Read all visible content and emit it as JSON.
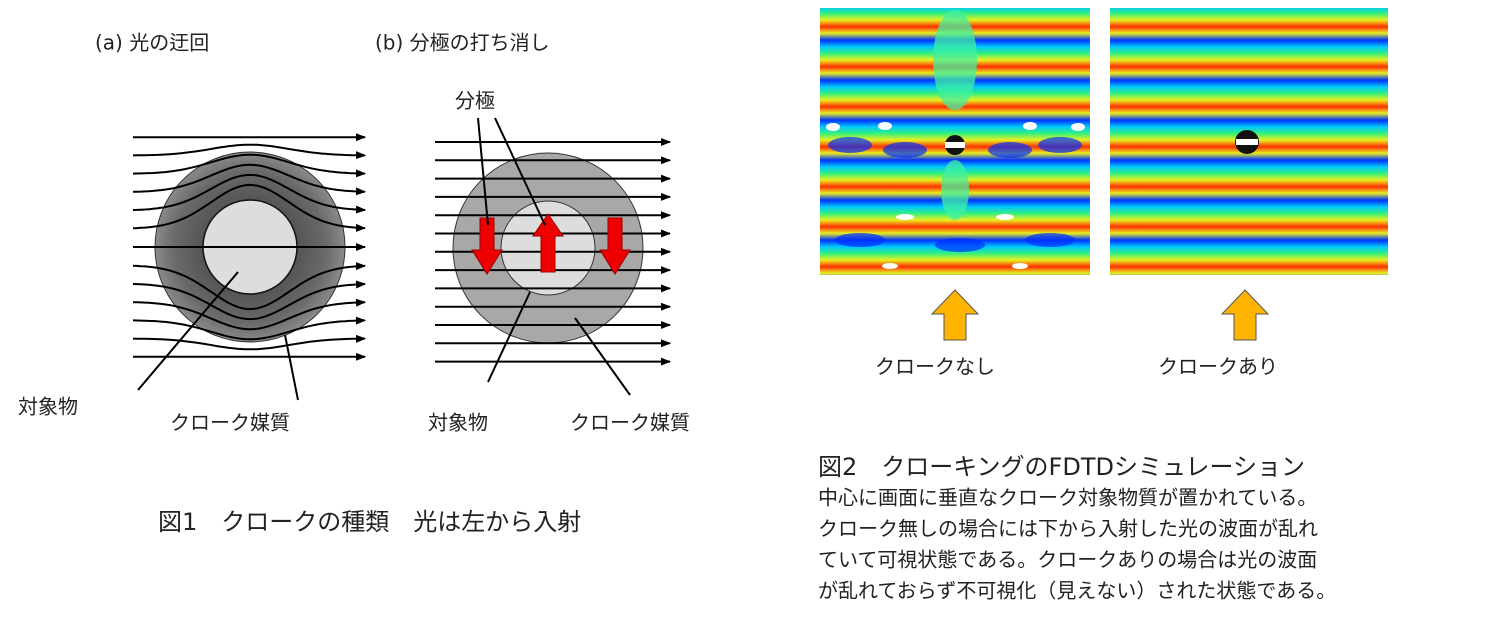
{
  "figure1": {
    "panel_a": {
      "label": "(a) 光の迂回",
      "object": "対象物",
      "medium": "クローク媒質"
    },
    "panel_b": {
      "label": "(b) 分極の打ち消し",
      "polarization": "分極",
      "object": "対象物",
      "medium": "クローク媒質"
    },
    "caption": "図1　クロークの種類　光は左から入射"
  },
  "figure2": {
    "panels": [
      {
        "label": "クロークなし"
      },
      {
        "label": "クロークあり"
      }
    ],
    "caption": {
      "title": "図2　クローキングのFDTDシミュレーション",
      "lines": [
        "中心に画面に垂直なクローク対象物質が置かれている。",
        "クローク無しの場合には下から入射した光の波面が乱れ",
        "ていて可視状態である。クロークありの場合は光の波面",
        "が乱れておらず不可視化（見えない）された状態である。"
      ]
    }
  }
}
